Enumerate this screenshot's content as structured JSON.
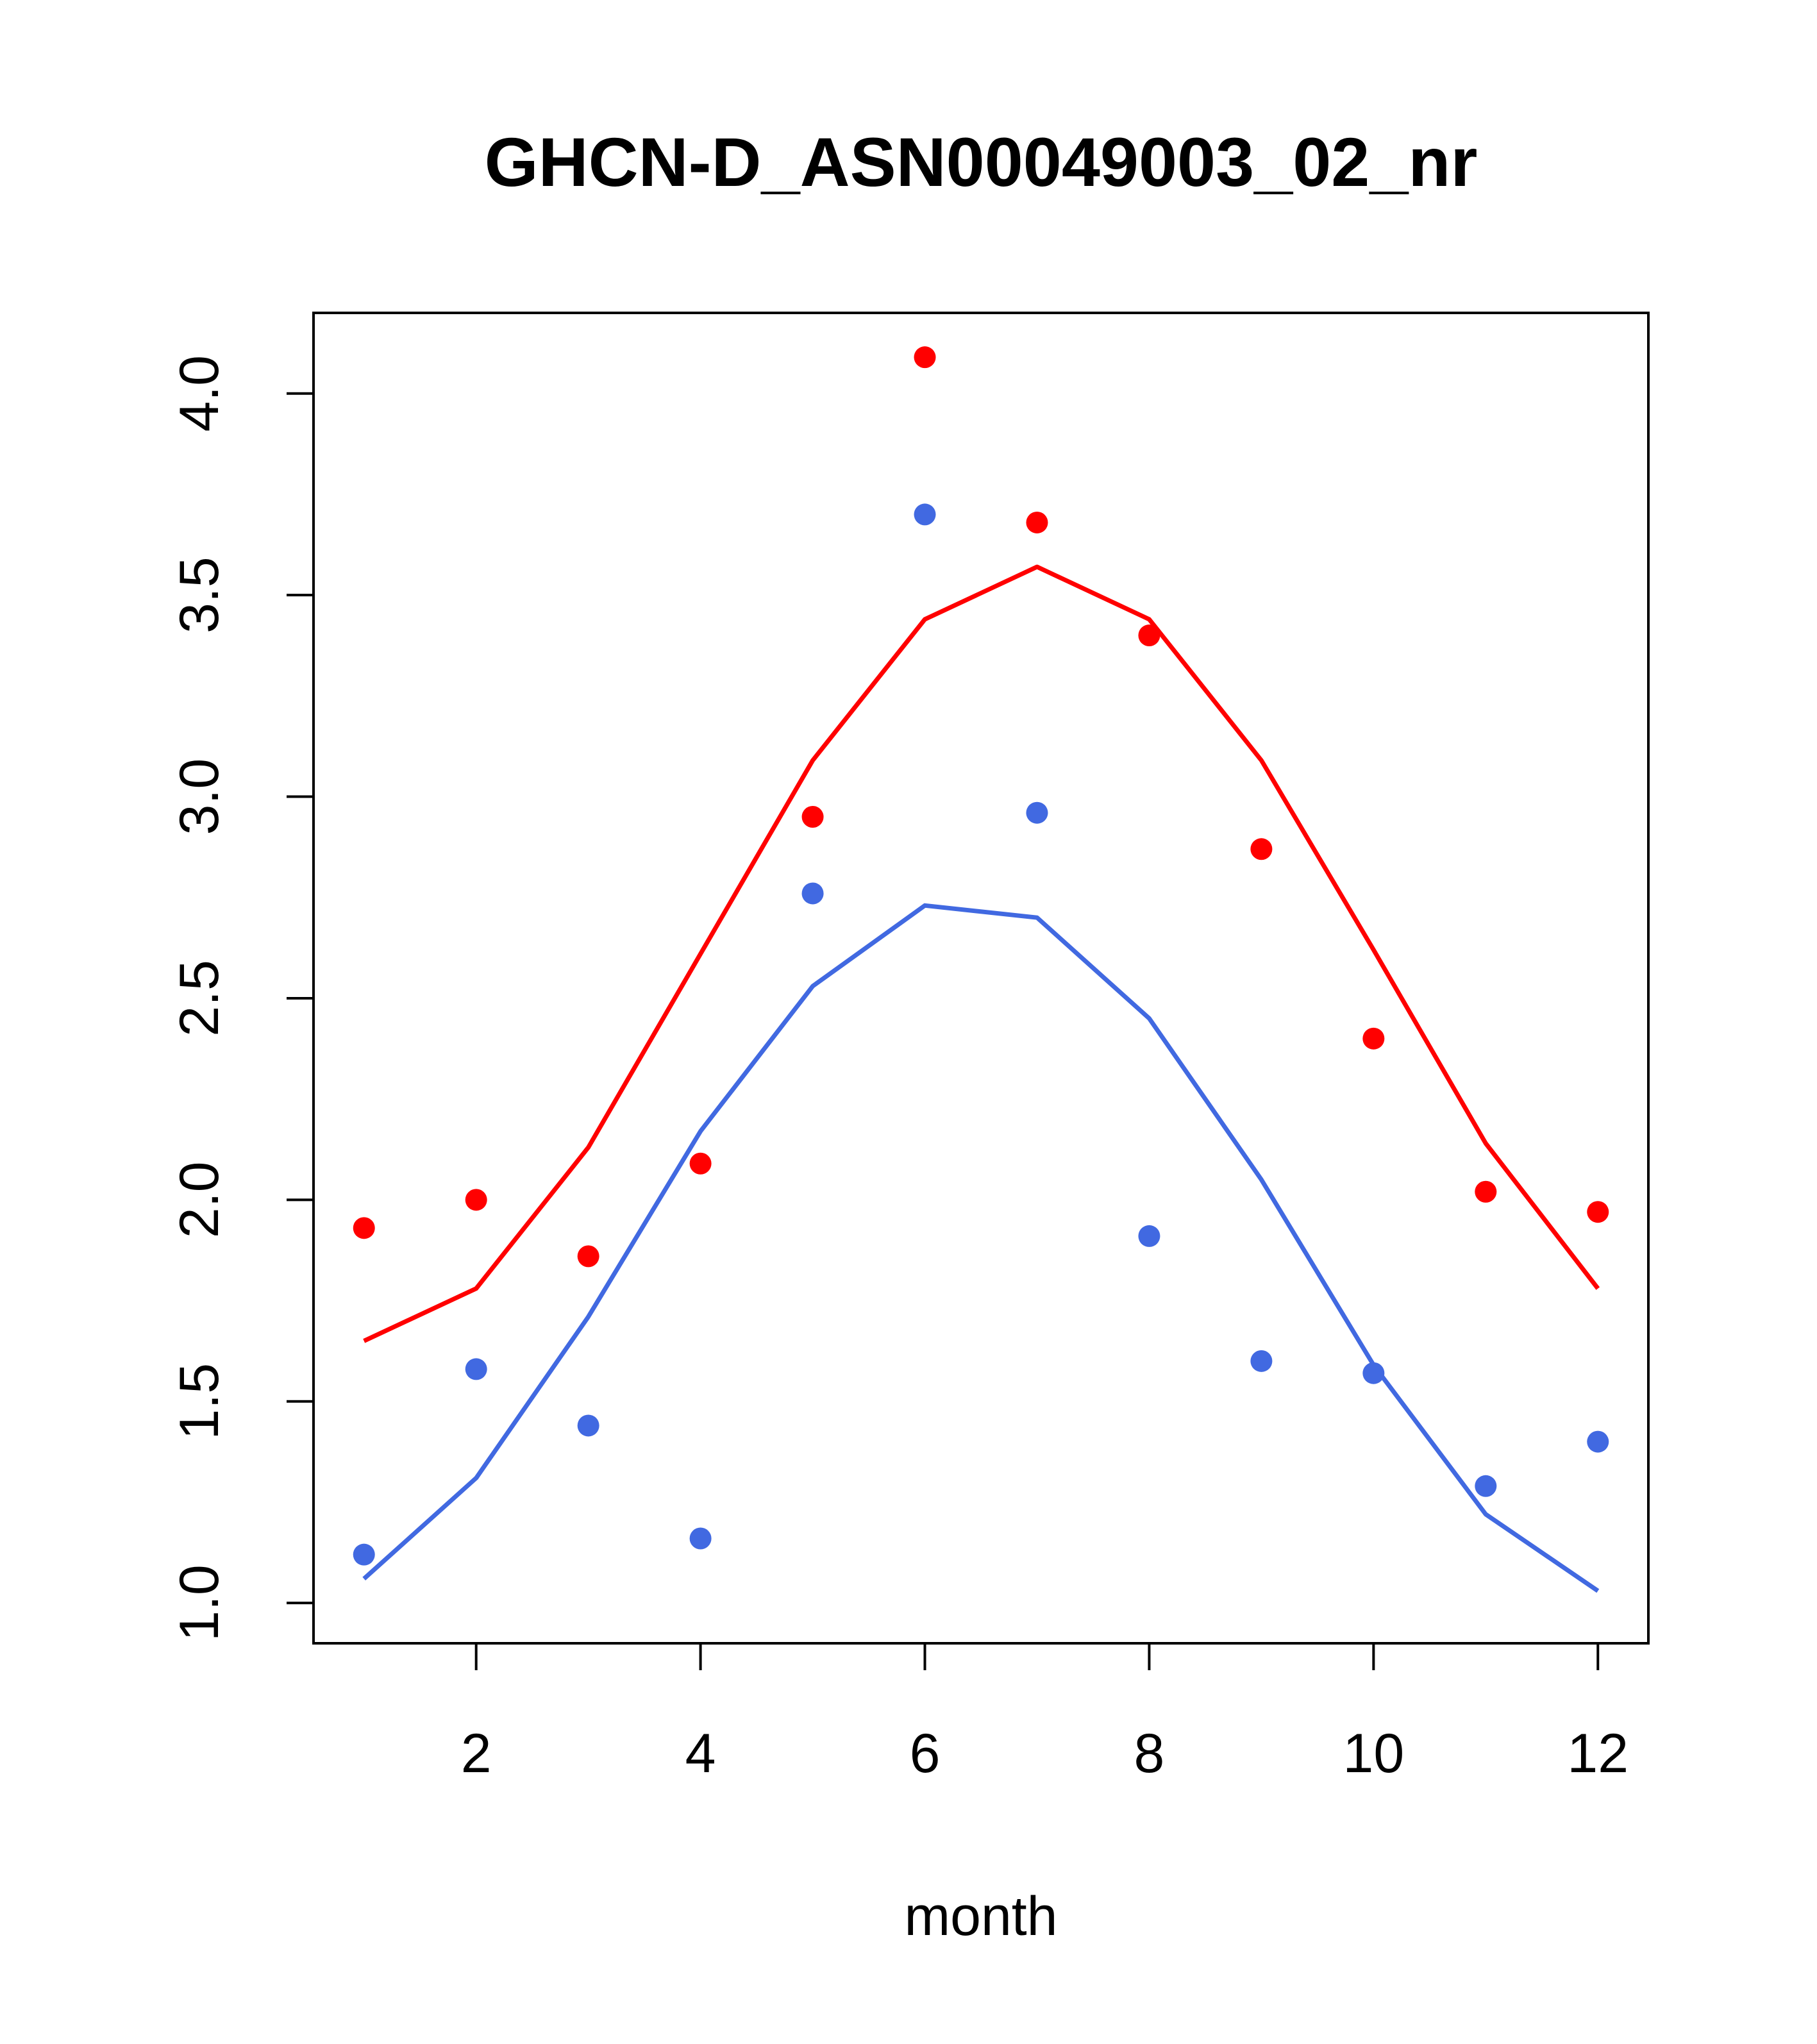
{
  "chart_data": {
    "type": "scatter",
    "title": "GHCN-D_ASN00049003_02_nr",
    "xlabel": "month",
    "ylabel": "",
    "xlim": [
      0.55,
      12.45
    ],
    "ylim": [
      0.9,
      4.2
    ],
    "xticks": [
      2,
      4,
      6,
      8,
      10,
      12
    ],
    "yticks": [
      1.0,
      1.5,
      2.0,
      2.5,
      3.0,
      3.5,
      4.0
    ],
    "ytick_labels": [
      "1.0",
      "1.5",
      "2.0",
      "2.5",
      "3.0",
      "3.5",
      "4.0"
    ],
    "grid": false,
    "legend": "none",
    "x": [
      1,
      2,
      3,
      4,
      5,
      6,
      7,
      8,
      9,
      10,
      11,
      12
    ],
    "series": [
      {
        "color": "#ff0000",
        "points": [
          1.93,
          2.0,
          1.86,
          2.09,
          2.95,
          4.09,
          3.68,
          3.4,
          2.87,
          2.4,
          2.02,
          1.97
        ],
        "line": [
          1.65,
          1.78,
          2.13,
          2.61,
          3.09,
          3.44,
          3.57,
          3.44,
          3.09,
          2.62,
          2.14,
          1.78
        ]
      },
      {
        "color": "#4169e1",
        "points": [
          1.12,
          1.58,
          1.44,
          1.16,
          2.76,
          3.7,
          2.96,
          1.91,
          1.6,
          1.57,
          1.29,
          1.4
        ],
        "line": [
          1.06,
          1.31,
          1.71,
          2.17,
          2.53,
          2.73,
          2.7,
          2.45,
          2.05,
          1.59,
          1.22,
          1.03
        ]
      }
    ]
  }
}
